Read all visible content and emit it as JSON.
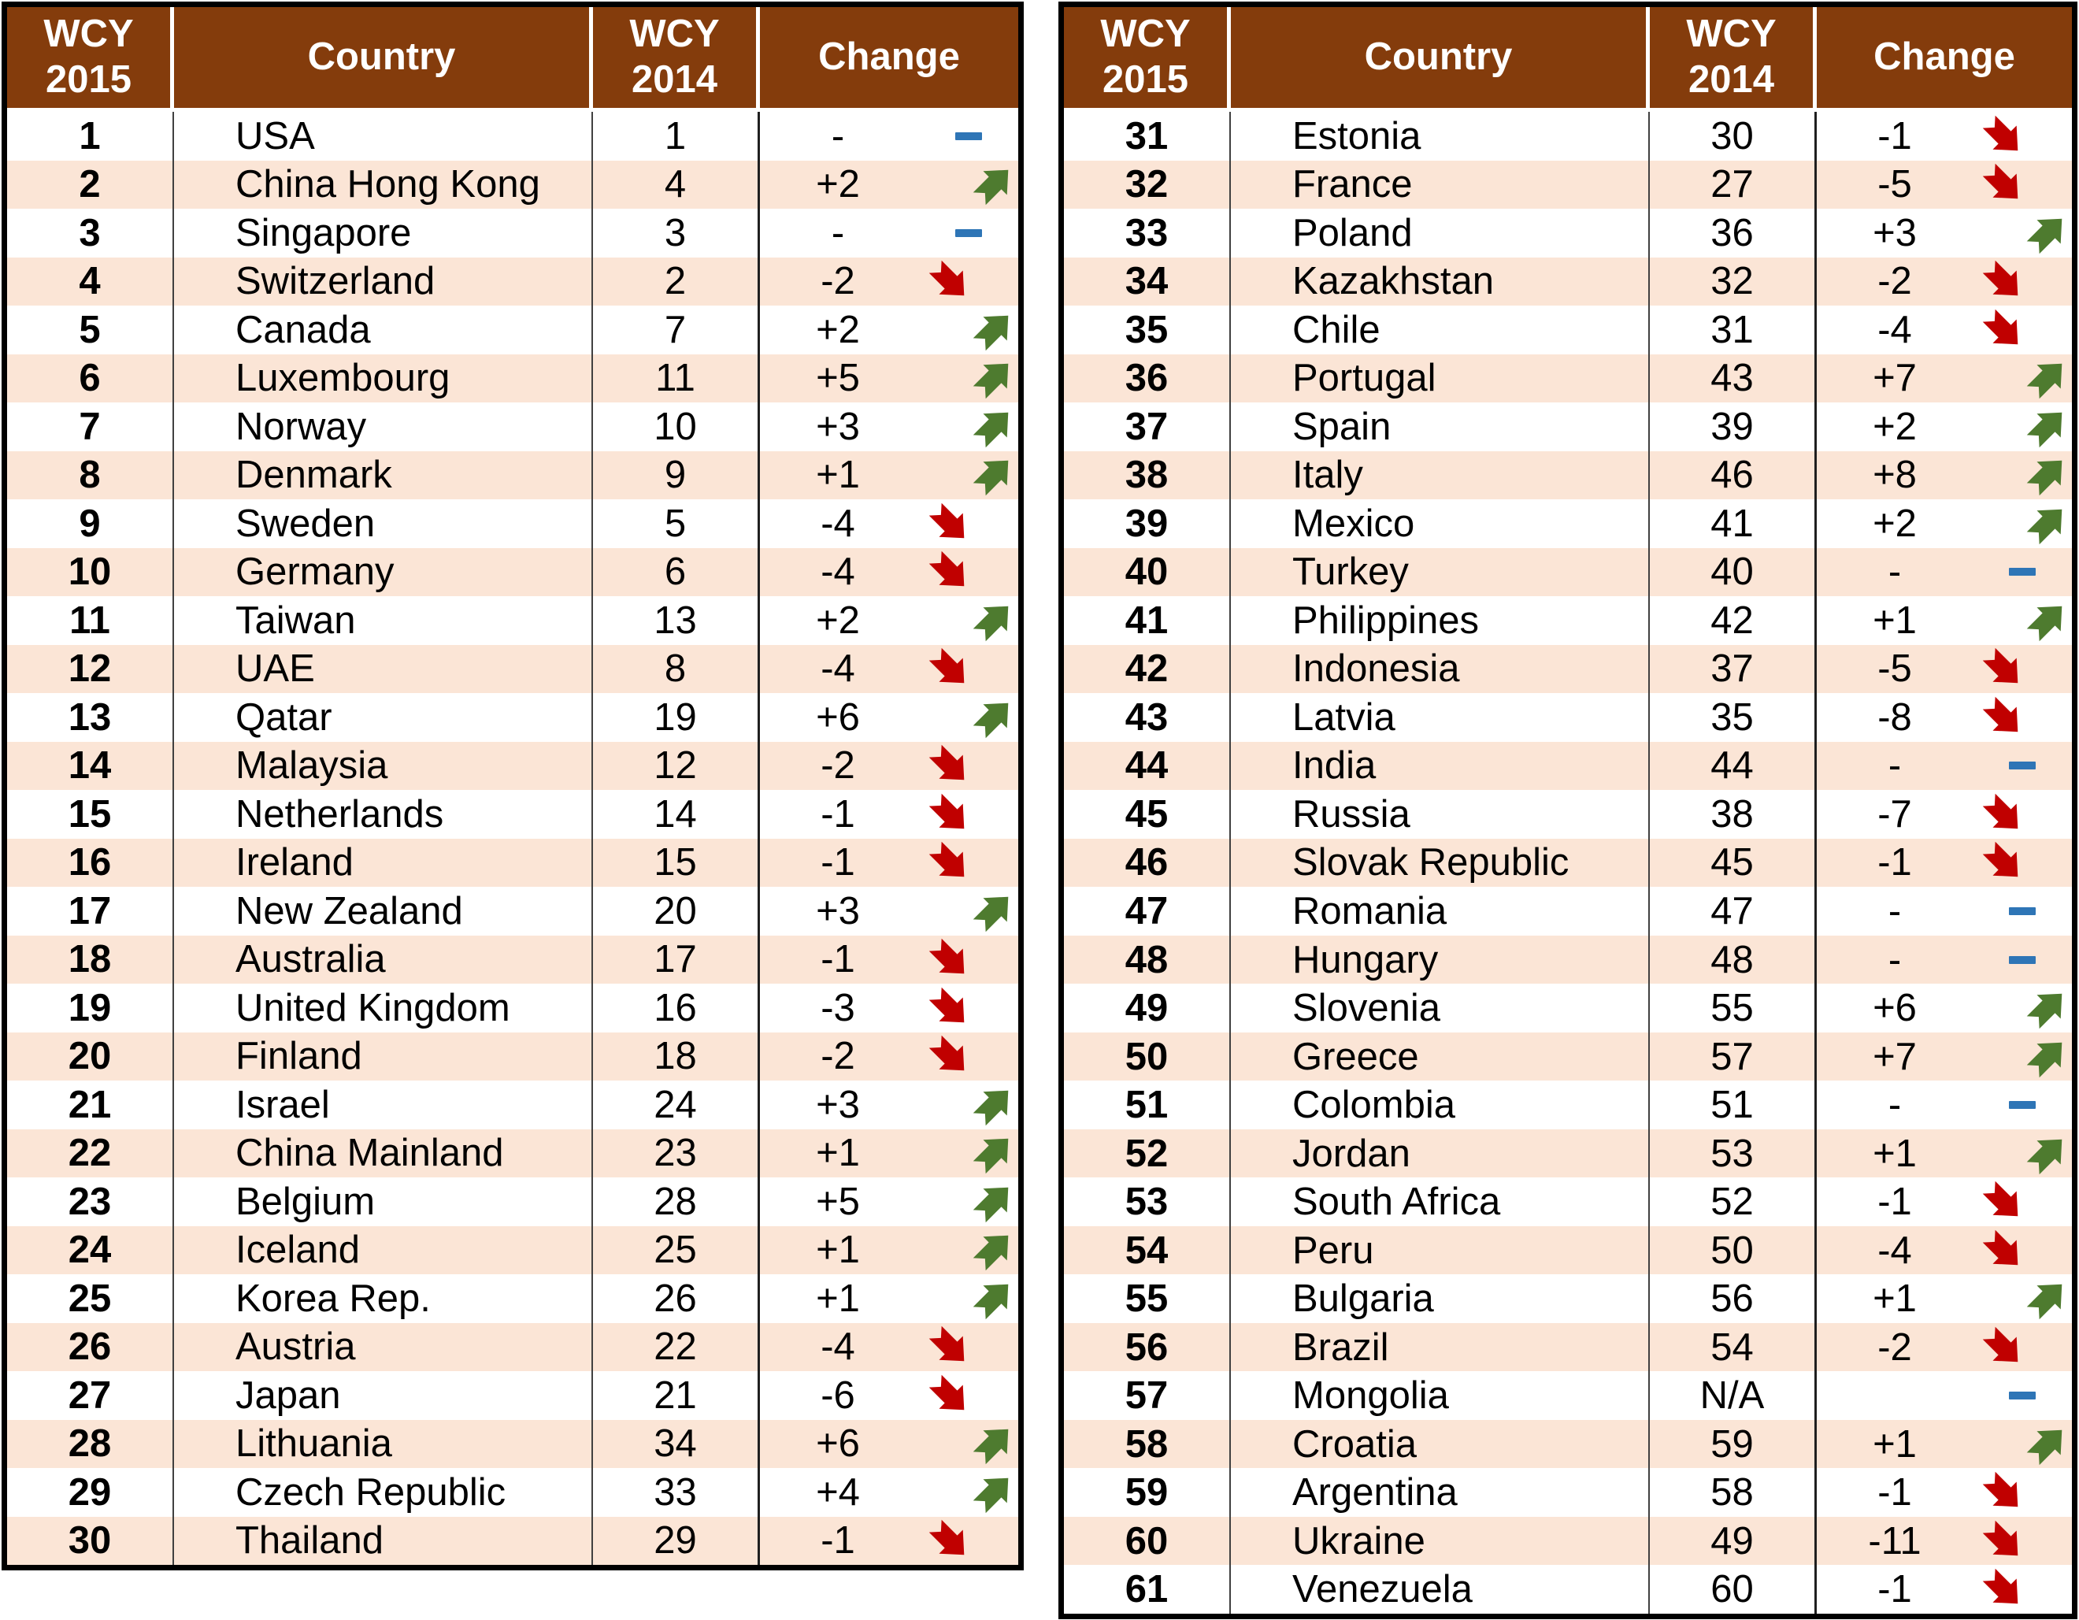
{
  "colors": {
    "header_bg": "#843C0C",
    "header_text": "#FFFFFF",
    "stripe_a": "#FFFFFF",
    "stripe_b": "#FBE5D6",
    "text": "#000000",
    "up_arrow": "#4E7B2F",
    "down_arrow": "#C00000",
    "dash": "#2E75B6",
    "table_border": "#000000",
    "divider": "#404040"
  },
  "icons": {
    "up": "up-right-arrow-icon",
    "down": "down-right-arrow-icon",
    "same": "no-change-dash-icon"
  },
  "header": {
    "rank2015_top": "WCY",
    "rank2015_bottom": "2015",
    "country": "Country",
    "rank2014_top": "WCY",
    "rank2014_bottom": "2014",
    "change": "Change"
  },
  "layout_hints": {
    "split_after_row": 30
  },
  "chart_data": {
    "type": "table",
    "columns": [
      "WCY 2015",
      "Country",
      "WCY 2014",
      "Change"
    ],
    "rows": [
      [
        "1",
        "USA",
        "1",
        "-",
        "same"
      ],
      [
        "2",
        "China Hong Kong",
        "4",
        "+2",
        "up"
      ],
      [
        "3",
        "Singapore",
        "3",
        "-",
        "same"
      ],
      [
        "4",
        "Switzerland",
        "2",
        "-2",
        "down"
      ],
      [
        "5",
        "Canada",
        "7",
        "+2",
        "up"
      ],
      [
        "6",
        "Luxembourg",
        "11",
        "+5",
        "up"
      ],
      [
        "7",
        "Norway",
        "10",
        "+3",
        "up"
      ],
      [
        "8",
        "Denmark",
        "9",
        "+1",
        "up"
      ],
      [
        "9",
        "Sweden",
        "5",
        "-4",
        "down"
      ],
      [
        "10",
        "Germany",
        "6",
        "-4",
        "down"
      ],
      [
        "11",
        "Taiwan",
        "13",
        "+2",
        "up"
      ],
      [
        "12",
        "UAE",
        "8",
        "-4",
        "down"
      ],
      [
        "13",
        "Qatar",
        "19",
        "+6",
        "up"
      ],
      [
        "14",
        "Malaysia",
        "12",
        "-2",
        "down"
      ],
      [
        "15",
        "Netherlands",
        "14",
        "-1",
        "down"
      ],
      [
        "16",
        "Ireland",
        "15",
        "-1",
        "down"
      ],
      [
        "17",
        "New Zealand",
        "20",
        "+3",
        "up"
      ],
      [
        "18",
        "Australia",
        "17",
        "-1",
        "down"
      ],
      [
        "19",
        "United Kingdom",
        "16",
        "-3",
        "down"
      ],
      [
        "20",
        "Finland",
        "18",
        "-2",
        "down"
      ],
      [
        "21",
        "Israel",
        "24",
        "+3",
        "up"
      ],
      [
        "22",
        "China Mainland",
        "23",
        "+1",
        "up"
      ],
      [
        "23",
        "Belgium",
        "28",
        "+5",
        "up"
      ],
      [
        "24",
        "Iceland",
        "25",
        "+1",
        "up"
      ],
      [
        "25",
        "Korea Rep.",
        "26",
        "+1",
        "up"
      ],
      [
        "26",
        "Austria",
        "22",
        "-4",
        "down"
      ],
      [
        "27",
        "Japan",
        "21",
        "-6",
        "down"
      ],
      [
        "28",
        "Lithuania",
        "34",
        "+6",
        "up"
      ],
      [
        "29",
        "Czech Republic",
        "33",
        "+4",
        "up"
      ],
      [
        "30",
        "Thailand",
        "29",
        "-1",
        "down"
      ],
      [
        "31",
        "Estonia",
        "30",
        "-1",
        "down"
      ],
      [
        "32",
        "France",
        "27",
        "-5",
        "down"
      ],
      [
        "33",
        "Poland",
        "36",
        "+3",
        "up"
      ],
      [
        "34",
        "Kazakhstan",
        "32",
        "-2",
        "down"
      ],
      [
        "35",
        "Chile",
        "31",
        "-4",
        "down"
      ],
      [
        "36",
        "Portugal",
        "43",
        "+7",
        "up"
      ],
      [
        "37",
        "Spain",
        "39",
        "+2",
        "up"
      ],
      [
        "38",
        "Italy",
        "46",
        "+8",
        "up"
      ],
      [
        "39",
        "Mexico",
        "41",
        "+2",
        "up"
      ],
      [
        "40",
        "Turkey",
        "40",
        "-",
        "same"
      ],
      [
        "41",
        "Philippines",
        "42",
        "+1",
        "up"
      ],
      [
        "42",
        "Indonesia",
        "37",
        "-5",
        "down"
      ],
      [
        "43",
        "Latvia",
        "35",
        "-8",
        "down"
      ],
      [
        "44",
        "India",
        "44",
        "-",
        "same"
      ],
      [
        "45",
        "Russia",
        "38",
        "-7",
        "down"
      ],
      [
        "46",
        "Slovak Republic",
        "45",
        "-1",
        "down"
      ],
      [
        "47",
        "Romania",
        "47",
        "-",
        "same"
      ],
      [
        "48",
        "Hungary",
        "48",
        "-",
        "same"
      ],
      [
        "49",
        "Slovenia",
        "55",
        "+6",
        "up"
      ],
      [
        "50",
        "Greece",
        "57",
        "+7",
        "up"
      ],
      [
        "51",
        "Colombia",
        "51",
        "-",
        "same"
      ],
      [
        "52",
        "Jordan",
        "53",
        "+1",
        "up"
      ],
      [
        "53",
        "South Africa",
        "52",
        "-1",
        "down"
      ],
      [
        "54",
        "Peru",
        "50",
        "-4",
        "down"
      ],
      [
        "55",
        "Bulgaria",
        "56",
        "+1",
        "up"
      ],
      [
        "56",
        "Brazil",
        "54",
        "-2",
        "down"
      ],
      [
        "57",
        "Mongolia",
        "N/A",
        "",
        "same"
      ],
      [
        "58",
        "Croatia",
        "59",
        "+1",
        "up"
      ],
      [
        "59",
        "Argentina",
        "58",
        "-1",
        "down"
      ],
      [
        "60",
        "Ukraine",
        "49",
        "-11",
        "down"
      ],
      [
        "61",
        "Venezuela",
        "60",
        "-1",
        "down"
      ]
    ]
  }
}
